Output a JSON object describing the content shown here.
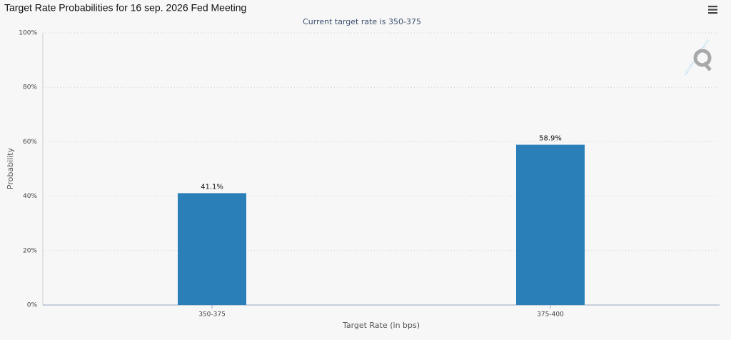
{
  "chart_data": {
    "type": "bar",
    "title": "Target Rate Probabilities for 16 sep. 2026 Fed Meeting",
    "subtitle": "Current target rate is 350-375",
    "x_label": "Target Rate (in bps)",
    "y_label": "Probability",
    "categories": [
      "350-375",
      "375-400"
    ],
    "values": [
      41.1,
      58.9
    ],
    "value_labels": [
      "41.1%",
      "58.9%"
    ],
    "color": "#2a7fb8",
    "ylim": [
      0,
      100
    ],
    "yticks": [
      {
        "value": 0,
        "label": "0%"
      },
      {
        "value": 20,
        "label": "20%"
      },
      {
        "value": 40,
        "label": "40%"
      },
      {
        "value": 60,
        "label": "60%"
      },
      {
        "value": 80,
        "label": "80%"
      },
      {
        "value": 100,
        "label": "100%"
      }
    ],
    "grid": true
  }
}
